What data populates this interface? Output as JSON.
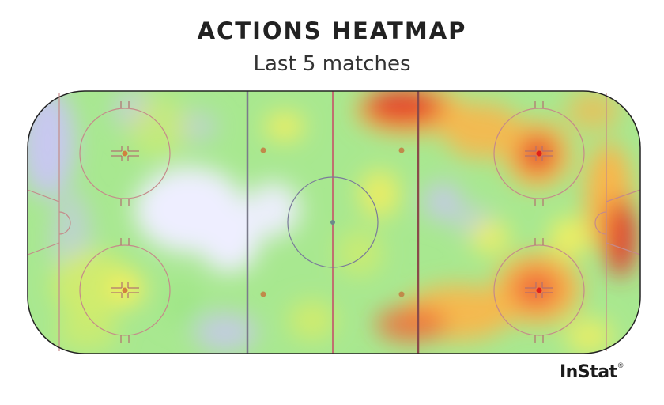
{
  "title": "ACTIONS HEATMAP",
  "subtitle": "Last 5 matches",
  "brand": "InStat",
  "chart_data": {
    "type": "heatmap",
    "title": "ACTIONS HEATMAP",
    "subtitle": "Last 5 matches",
    "surface": "ice hockey rink",
    "color_scale": [
      "#c9c6f4",
      "#eeeeff",
      "#9ee685",
      "#d4ec6a",
      "#f7ef5c",
      "#f9b64b",
      "#f06a3a",
      "#e3362a"
    ],
    "hot_zones": [
      {
        "zone": "offensive zone, upper-right faceoff circle",
        "intensity": 1.0
      },
      {
        "zone": "offensive zone, lower-right faceoff circle",
        "intensity": 0.95
      },
      {
        "zone": "offensive end boards behind goal",
        "intensity": 0.75
      },
      {
        "zone": "top boards near far blue line",
        "intensity": 0.9
      },
      {
        "zone": "bottom boards near far blue line",
        "intensity": 0.8
      },
      {
        "zone": "neutral zone center-right",
        "intensity": 0.5
      },
      {
        "zone": "defensive zone, lower-left faceoff circle",
        "intensity": 0.45
      },
      {
        "zone": "defensive zone slot / center",
        "intensity": 0.05
      }
    ]
  }
}
